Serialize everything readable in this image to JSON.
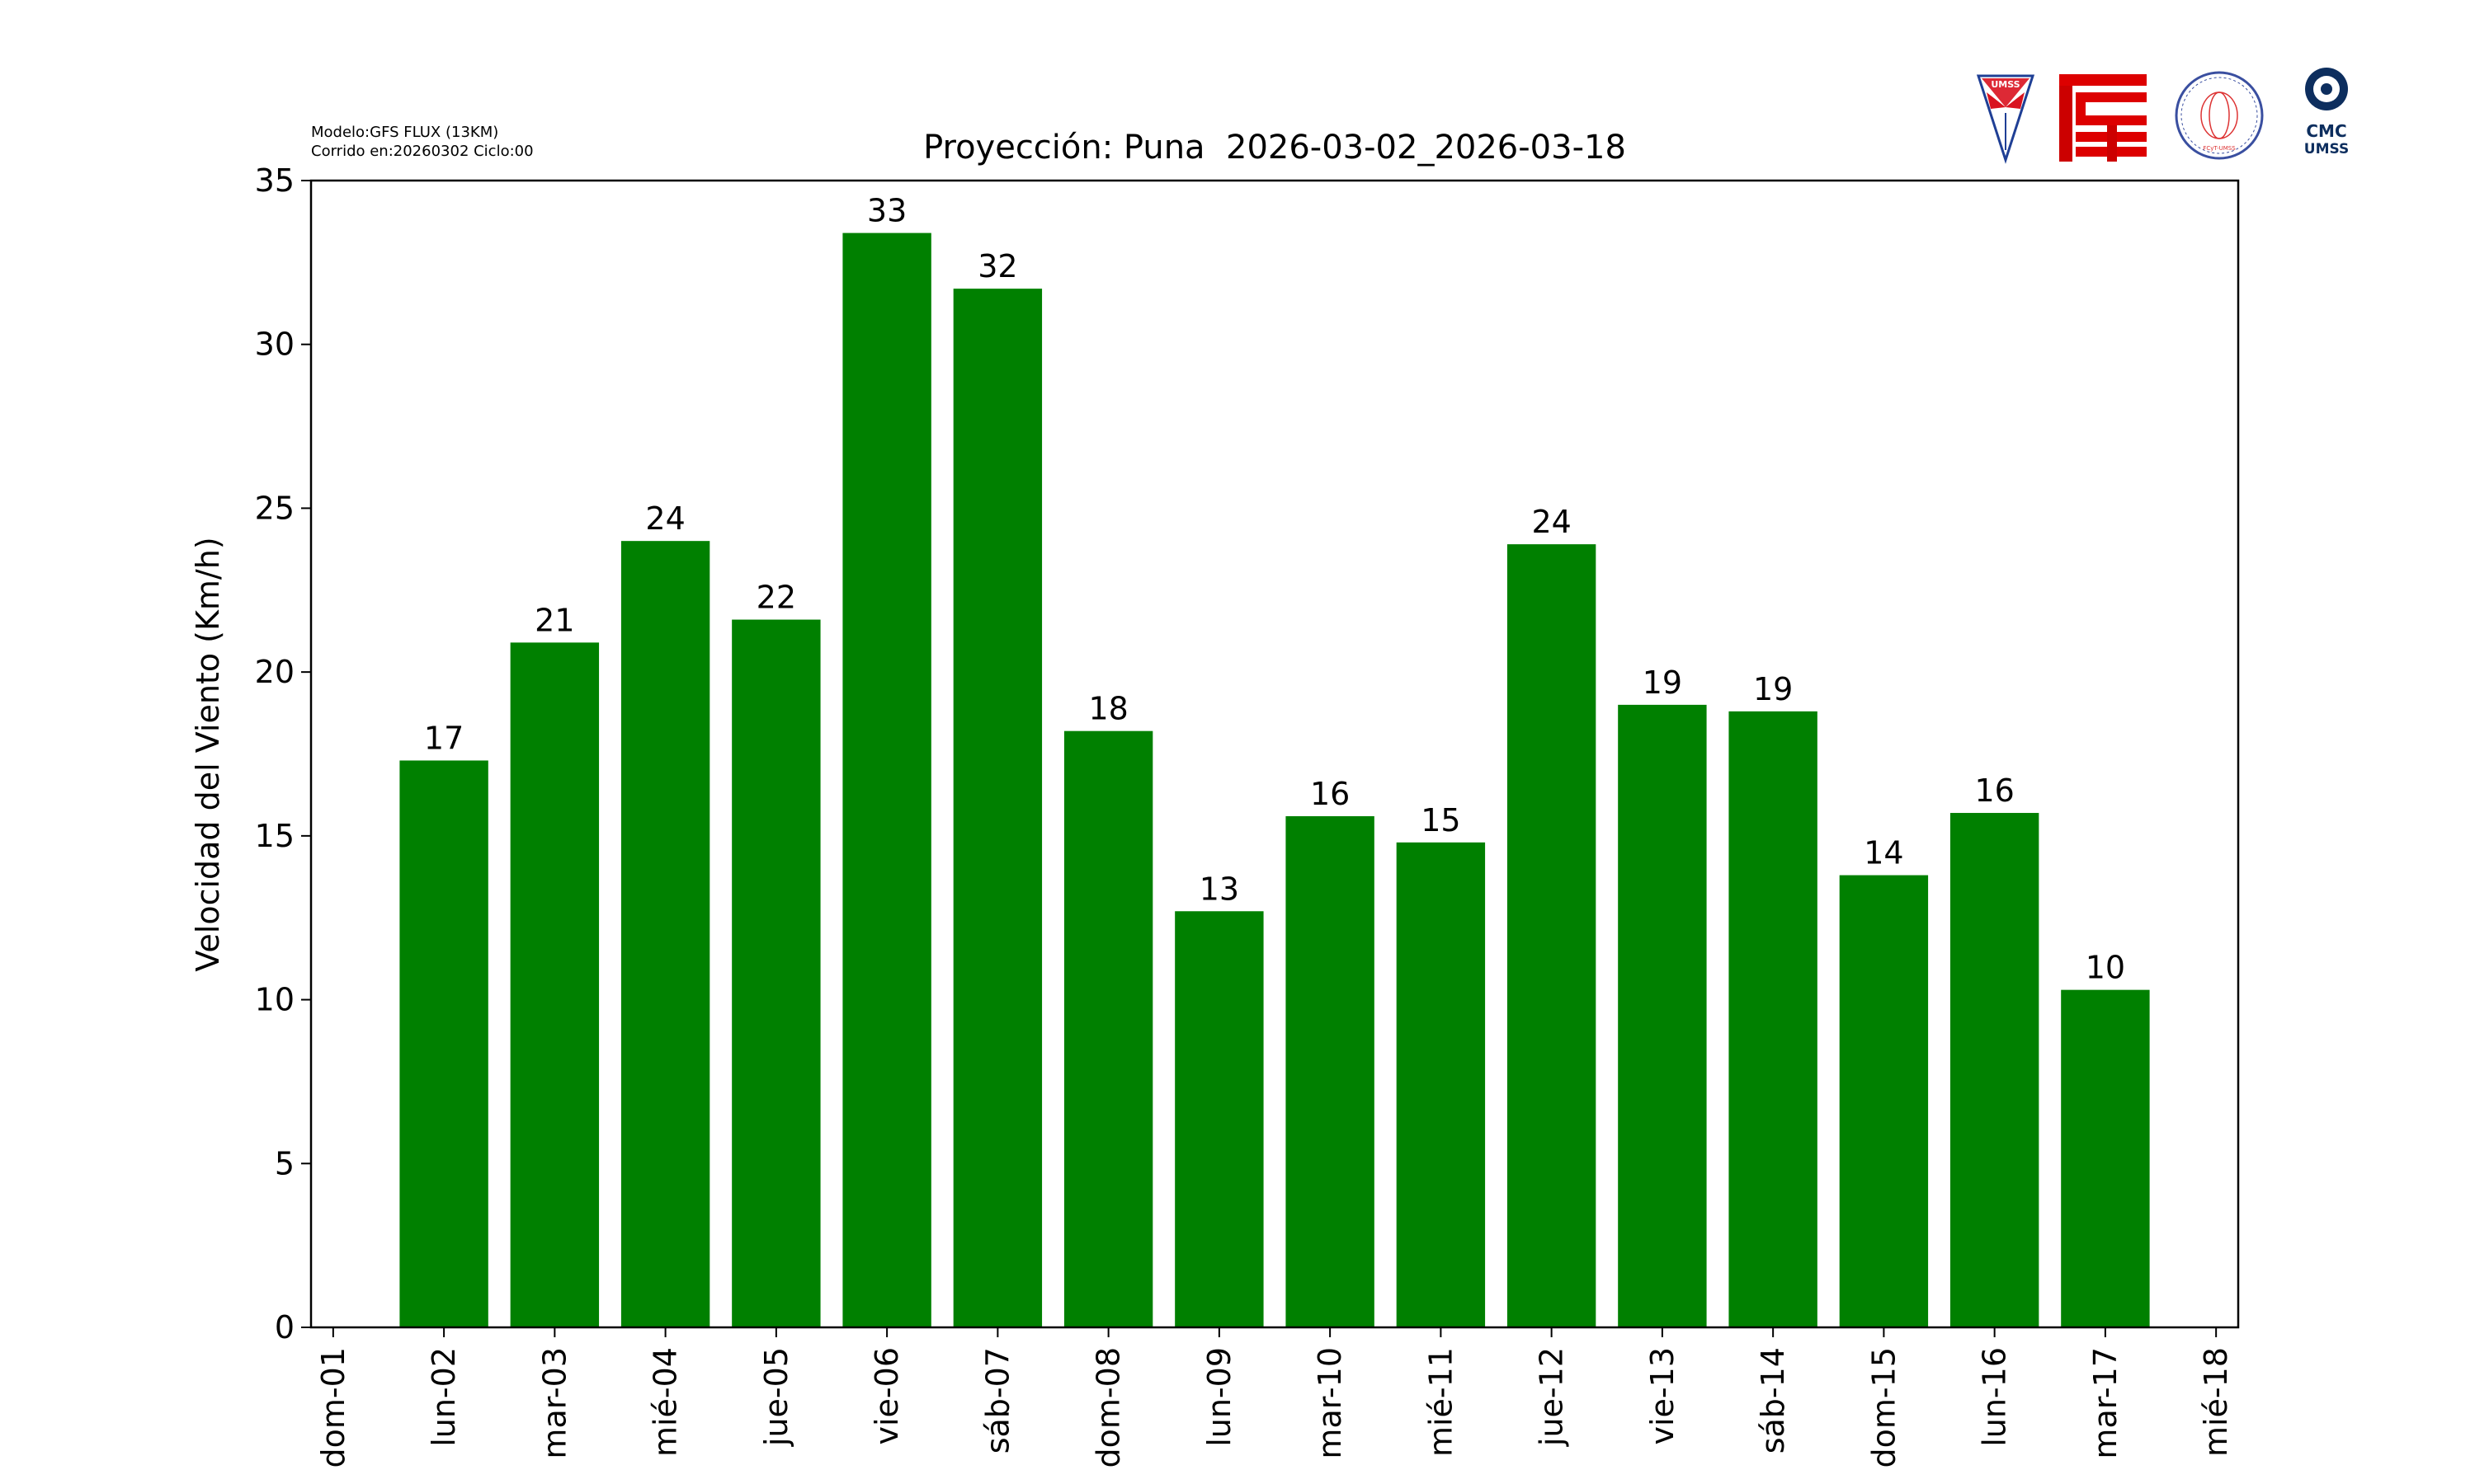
{
  "header": {
    "model_line": "Modelo:GFS FLUX (13KM)",
    "run_line": "Corrido en:20260302 Ciclo:00"
  },
  "logos": {
    "umss": "UMSS",
    "fisica": "DEPARTAMENTO DE FÍSICA",
    "fisica_sub": "FCyT-UMSS",
    "cmc_line1": "CMC",
    "cmc_line2": "UMSS"
  },
  "colors": {
    "bar": "#008000",
    "axis": "#000000"
  },
  "chart_data": {
    "type": "bar",
    "title": "Proyección: Puna  2026-03-02_2026-03-18",
    "xlabel": "",
    "ylabel": "Velocidad del Viento (Km/h)",
    "ylim": [
      0,
      35
    ],
    "yticks": [
      0,
      5,
      10,
      15,
      20,
      25,
      30,
      35
    ],
    "xlim": [
      -0.2,
      17.2
    ],
    "xtick_labels": [
      "dom-01",
      "lun-02",
      "mar-03",
      "mié-04",
      "jue-05",
      "vie-06",
      "sáb-07",
      "dom-08",
      "lun-09",
      "mar-10",
      "mié-11",
      "jue-12",
      "vie-13",
      "sáb-14",
      "dom-15",
      "lun-16",
      "mar-17",
      "mié-18"
    ],
    "categories": [
      "lun-02",
      "mar-03",
      "mié-04",
      "jue-05",
      "vie-06",
      "sáb-07",
      "dom-08",
      "lun-09",
      "mar-10",
      "mié-11",
      "jue-12",
      "vie-13",
      "sáb-14",
      "dom-15",
      "lun-16",
      "mar-17"
    ],
    "values": [
      17.3,
      20.9,
      24.0,
      21.6,
      33.4,
      31.7,
      18.2,
      12.7,
      15.6,
      14.8,
      23.9,
      19.0,
      18.8,
      13.8,
      15.7,
      10.3
    ],
    "labels": [
      "17",
      "21",
      "24",
      "22",
      "33",
      "32",
      "18",
      "13",
      "16",
      "15",
      "24",
      "19",
      "19",
      "14",
      "16",
      "10"
    ],
    "grid": false,
    "legend": "none"
  }
}
